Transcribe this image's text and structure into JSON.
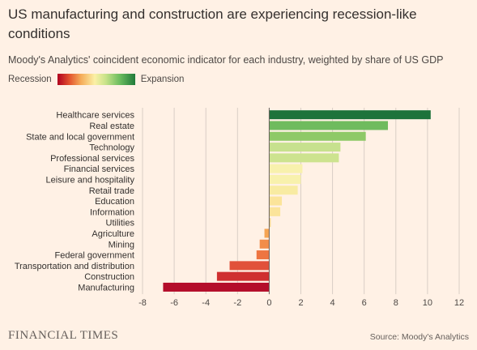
{
  "title": "US manufacturing and construction are experiencing recession-like conditions",
  "subtitle": "Moody's Analytics' coincident economic indicator for each industry, weighted by share of US GDP",
  "legend": {
    "left_label": "Recession",
    "right_label": "Expansion"
  },
  "footer": {
    "brand": "FINANCIAL TIMES",
    "source": "Source: Moody's Analytics"
  },
  "colors": {
    "background": "#fff1e5",
    "grid": "#d9cec5",
    "zero_line": "#66605c"
  },
  "chart_data": {
    "type": "bar",
    "orientation": "horizontal",
    "categories": [
      "Healthcare services",
      "Real estate",
      "State and local government",
      "Technology",
      "Professional services",
      "Financial services",
      "Leisure and hospitality",
      "Retail trade",
      "Education",
      "Information",
      "Utilities",
      "Agriculture",
      "Mining",
      "Federal government",
      "Transportation and distribution",
      "Construction",
      "Manufacturing"
    ],
    "values": [
      10.2,
      7.5,
      6.1,
      4.5,
      4.4,
      2.1,
      2.0,
      1.8,
      0.8,
      0.7,
      0.1,
      -0.3,
      -0.6,
      -0.8,
      -2.5,
      -3.3,
      -6.7
    ],
    "colors": [
      "#1d733b",
      "#6fbb5e",
      "#8ec967",
      "#c7e18e",
      "#cde38f",
      "#f8f1ad",
      "#f8f1ad",
      "#f8eba2",
      "#fbe49a",
      "#fbe49a",
      "#f7d78c",
      "#f5a453",
      "#f28d4a",
      "#ee7541",
      "#e1513a",
      "#cf3030",
      "#b40d2a"
    ],
    "xlim": [
      -8,
      12
    ],
    "xticks": [
      "-8",
      "-6",
      "-4",
      "-2",
      "0",
      "2",
      "4",
      "6",
      "8",
      "10",
      "12"
    ],
    "grid": true
  }
}
